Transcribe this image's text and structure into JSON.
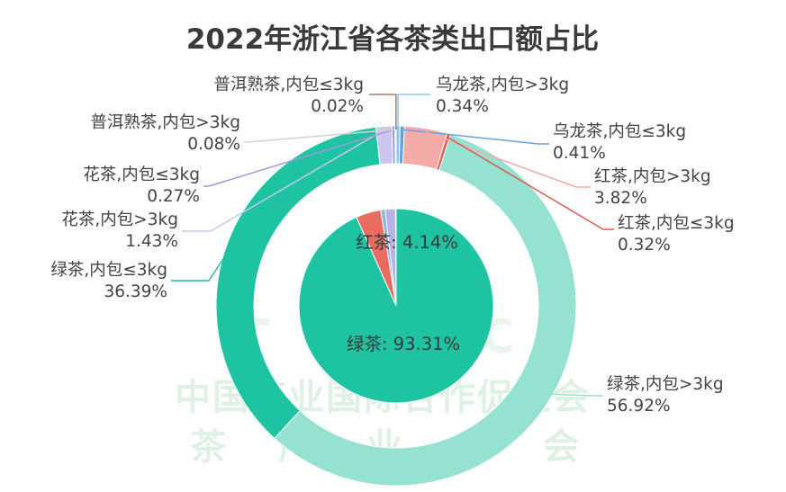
{
  "chart_data": {
    "type": "pie",
    "title": "2022年浙江省各茶类出口额占比",
    "inner": [
      {
        "label": "绿茶",
        "value": 93.31,
        "text": "绿茶: 93.31%",
        "color": "#1ec4a1"
      },
      {
        "label": "红茶",
        "value": 4.14,
        "text": "红茶: 4.14%",
        "color": "#ea6b5f"
      },
      {
        "label": "乌龙茶",
        "value": 0.75,
        "text": "",
        "color": "#8fb5e3"
      },
      {
        "label": "花茶",
        "value": 1.7,
        "text": "",
        "color": "#b6b3e6"
      },
      {
        "label": "普洱熟茶",
        "value": 0.1,
        "text": "",
        "color": "#d7d7d7"
      }
    ],
    "outer": [
      {
        "label": "乌龙茶,内包>3kg",
        "value": 0.34,
        "pct": "0.34%",
        "color": "#8fc6ea"
      },
      {
        "label": "乌龙茶,内包≤3kg",
        "value": 0.41,
        "pct": "0.41%",
        "color": "#66a4de"
      },
      {
        "label": "红茶,内包>3kg",
        "value": 3.82,
        "pct": "3.82%",
        "color": "#f4aaa7"
      },
      {
        "label": "红茶,内包≤3kg",
        "value": 0.32,
        "pct": "0.32%",
        "color": "#e05a52"
      },
      {
        "label": "绿茶,内包>3kg",
        "value": 56.92,
        "pct": "56.92%",
        "color": "#95e2d2"
      },
      {
        "label": "绿茶,内包≤3kg",
        "value": 36.39,
        "pct": "36.39%",
        "color": "#1ec4a1"
      },
      {
        "label": "花茶,内包>3kg",
        "value": 1.43,
        "pct": "1.43%",
        "color": "#c9c7ee"
      },
      {
        "label": "花茶,内包≤3kg",
        "value": 0.27,
        "pct": "0.27%",
        "color": "#9e98dc"
      },
      {
        "label": "普洱熟茶,内包>3kg",
        "value": 0.08,
        "pct": "0.08%",
        "color": "#d2d2d2"
      },
      {
        "label": "普洱熟茶,内包≤3kg",
        "value": 0.02,
        "pct": "0.02%",
        "color": "#9a8176"
      }
    ]
  },
  "watermark": {
    "line1": "T C C",
    "line2": "中国茶业国际合作促进会",
    "line3": "茶 产 业 分 会"
  }
}
